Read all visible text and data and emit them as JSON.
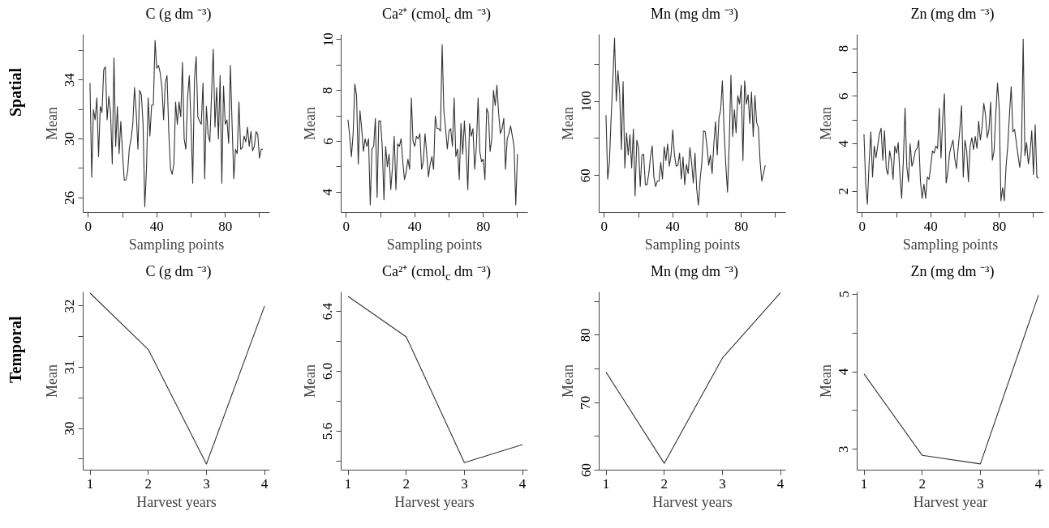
{
  "chart_data": [
    {
      "type": "line",
      "title": "C (g dm ⁻³)",
      "xlabel": "Sampling points",
      "ylabel": "Mean",
      "annotations": [
        "Spatial"
      ],
      "color": "#333333",
      "x": [
        1,
        2,
        3,
        4,
        5,
        6,
        7,
        8,
        9,
        10,
        11,
        12,
        13,
        14,
        15,
        16,
        17,
        18,
        19,
        20,
        21,
        22,
        23,
        24,
        25,
        26,
        27,
        28,
        29,
        30,
        31,
        32,
        33,
        34,
        35,
        36,
        37,
        38,
        39,
        40,
        41,
        42,
        43,
        44,
        45,
        46,
        47,
        48,
        49,
        50,
        51,
        52,
        53,
        54,
        55,
        56,
        57,
        58,
        59,
        60,
        61,
        62,
        63,
        64,
        65,
        66,
        67,
        68,
        69,
        70,
        71,
        72,
        73,
        74,
        75,
        76,
        77,
        78,
        79,
        80,
        81,
        82,
        83,
        84,
        85,
        86,
        87,
        88,
        89,
        90,
        91,
        92,
        93,
        94,
        95,
        96,
        97,
        98,
        99,
        100,
        101,
        102
      ],
      "values": [
        33.8,
        27.4,
        32,
        31.3,
        32.8,
        28.8,
        32.2,
        31.8,
        34.7,
        34.9,
        31.3,
        32.9,
        31.8,
        28.3,
        35.5,
        29.5,
        32.2,
        29,
        31.2,
        29,
        27.2,
        27.2,
        27.8,
        29.4,
        30,
        31,
        33.5,
        31.8,
        29.3,
        33.3,
        33,
        31,
        25.4,
        28,
        32.8,
        30.2,
        32.3,
        32.3,
        36.7,
        34.8,
        35,
        34.5,
        33.5,
        31.3,
        33.8,
        34.3,
        30.5,
        28,
        27.6,
        28.3,
        32.5,
        31,
        32.5,
        31.5,
        35.2,
        30,
        29.3,
        32.8,
        34.3,
        31,
        27,
        34,
        35.6,
        31.5,
        31.2,
        31,
        33.8,
        27.3,
        32.2,
        30.3,
        29.8,
        33,
        36.1,
        30.8,
        33.5,
        30,
        34.3,
        27,
        33.6,
        31,
        31.3,
        29.7,
        35,
        31,
        27.3,
        29.3,
        29,
        32.5,
        29.3,
        29.4,
        30.2,
        29.8,
        30.8,
        29.5,
        30.5,
        29.2,
        29.5,
        30.5,
        30.3,
        28.7,
        29.3,
        29.3
      ],
      "xlim": [
        -3,
        106
      ],
      "xticks": [
        0,
        {
          "value": 20,
          "label": null
        },
        40,
        {
          "value": 60,
          "label": null
        },
        80,
        {
          "value": 100,
          "label": null
        }
      ],
      "ylim": [
        25,
        37.1
      ],
      "yticks": [
        26,
        {
          "value": 28,
          "label": null
        },
        30,
        {
          "value": 32,
          "label": null
        },
        34,
        {
          "value": 36,
          "label": null
        }
      ]
    },
    {
      "type": "line",
      "title": "Ca²⁺ (cmol$_{c}$ dm ⁻³)",
      "xlabel": "Sampling points",
      "ylabel": "Mean",
      "color": "#333333",
      "x": [
        1,
        2,
        3,
        4,
        5,
        6,
        7,
        8,
        9,
        10,
        11,
        12,
        13,
        14,
        15,
        16,
        17,
        18,
        19,
        20,
        21,
        22,
        23,
        24,
        25,
        26,
        27,
        28,
        29,
        30,
        31,
        32,
        33,
        34,
        35,
        36,
        37,
        38,
        39,
        40,
        41,
        42,
        43,
        44,
        45,
        46,
        47,
        48,
        49,
        50,
        51,
        52,
        53,
        54,
        55,
        56,
        57,
        58,
        59,
        60,
        61,
        62,
        63,
        64,
        65,
        66,
        67,
        68,
        69,
        70,
        71,
        72,
        73,
        74,
        75,
        76,
        77,
        78,
        79,
        80,
        81,
        82,
        83,
        84,
        85,
        86,
        87,
        88,
        89,
        90,
        91,
        92,
        93,
        94,
        95,
        96,
        97,
        98,
        99,
        100
      ],
      "values": [
        6.85,
        6.2,
        5.4,
        6.3,
        8.25,
        7.8,
        5.1,
        7.2,
        6.5,
        5.6,
        6.1,
        5.8,
        6.1,
        3.5,
        5.7,
        5.8,
        6.9,
        3.8,
        6.8,
        6.8,
        5.8,
        3.7,
        5.8,
        5,
        5.5,
        4.1,
        5,
        6.2,
        4.1,
        5.9,
        5.8,
        6.1,
        5.2,
        4.5,
        4.8,
        5.3,
        4.9,
        7.7,
        6,
        5.8,
        6.2,
        6.1,
        6.3,
        4.9,
        5.2,
        6.3,
        5.5,
        4.6,
        5.1,
        5.4,
        4.9,
        7,
        6.5,
        6.5,
        6.4,
        9.8,
        7.2,
        6.5,
        5.7,
        6.4,
        6.5,
        5.8,
        7.7,
        5.4,
        5.7,
        4.5,
        6.7,
        5.5,
        6.8,
        5.6,
        4.1,
        6.7,
        6.2,
        6.5,
        4.9,
        5.8,
        7.7,
        5.6,
        5.2,
        5.3,
        4.5,
        7.3,
        7.1,
        5.6,
        6.1,
        8,
        7.4,
        8.2,
        7.1,
        6.3,
        6.5,
        6.9,
        4.9,
        6.1,
        6.3,
        6.6,
        6.2,
        5.8,
        3.5,
        5.5
      ],
      "xlim": [
        -3,
        106
      ],
      "xticks": [
        0,
        {
          "value": 20,
          "label": null
        },
        40,
        {
          "value": 60,
          "label": null
        },
        80,
        {
          "value": 100,
          "label": null
        }
      ],
      "ylim": [
        3.2,
        10.2
      ],
      "yticks": [
        4,
        {
          "value": 5,
          "label": null
        },
        6,
        {
          "value": 7,
          "label": null
        },
        8,
        {
          "value": 9,
          "label": null
        },
        10
      ]
    },
    {
      "type": "line",
      "title": "Mn (mg dm ⁻³)",
      "xlabel": "Sampling points",
      "ylabel": "Mean",
      "color": "#333333",
      "x": [
        1,
        2,
        3,
        4,
        5,
        6,
        7,
        8,
        9,
        10,
        11,
        12,
        13,
        14,
        15,
        16,
        17,
        18,
        19,
        20,
        21,
        22,
        23,
        24,
        25,
        26,
        27,
        28,
        29,
        30,
        31,
        32,
        33,
        34,
        35,
        36,
        37,
        38,
        39,
        40,
        41,
        42,
        43,
        44,
        45,
        46,
        47,
        48,
        49,
        50,
        51,
        52,
        53,
        54,
        55,
        56,
        57,
        58,
        59,
        60,
        61,
        62,
        63,
        64,
        65,
        66,
        67,
        68,
        69,
        70,
        71,
        72,
        73,
        74,
        75,
        76,
        77,
        78,
        79,
        80,
        81,
        82,
        83,
        84,
        85,
        86,
        87,
        88,
        89,
        90,
        91,
        92,
        93,
        94
      ],
      "values": [
        92.5,
        58,
        67,
        91,
        111.5,
        134,
        100,
        116.5,
        104,
        74,
        110.6,
        64,
        83,
        71,
        82,
        64,
        85,
        49,
        79,
        75,
        54,
        71,
        71.5,
        55,
        55,
        61,
        70,
        76,
        59,
        54,
        57,
        57,
        67,
        58,
        75.5,
        68,
        77,
        65,
        71,
        84.5,
        71,
        65,
        65.5,
        72,
        58,
        70,
        55,
        66,
        61,
        75,
        67,
        56,
        72,
        52.5,
        44,
        58,
        67,
        84,
        83.5,
        75.5,
        65.5,
        71,
        61,
        77,
        89,
        71,
        91,
        95.5,
        111,
        84,
        65.5,
        51,
        78,
        114,
        81,
        95.5,
        83,
        103,
        98.5,
        108.6,
        68,
        111,
        98.5,
        103.6,
        88,
        105,
        81,
        103,
        88.5,
        86,
        68,
        57,
        61,
        65.5
      ],
      "xlim": [
        -3,
        106
      ],
      "xticks": [
        0,
        {
          "value": 20,
          "label": null
        },
        40,
        {
          "value": 60,
          "label": null
        },
        80,
        {
          "value": 100,
          "label": null
        }
      ],
      "ylim": [
        40,
        136
      ],
      "yticks": [
        60,
        {
          "value": 80,
          "label": null
        },
        100,
        {
          "value": 120,
          "label": null
        }
      ]
    },
    {
      "type": "line",
      "title": "Zn (mg dm ⁻³)",
      "xlabel": "Sampling points",
      "ylabel": "Mean",
      "color": "#333333",
      "x": [
        1,
        2,
        3,
        4,
        5,
        6,
        7,
        8,
        9,
        10,
        11,
        12,
        13,
        14,
        15,
        16,
        17,
        18,
        19,
        20,
        21,
        22,
        23,
        24,
        25,
        26,
        27,
        28,
        29,
        30,
        31,
        32,
        33,
        34,
        35,
        36,
        37,
        38,
        39,
        40,
        41,
        42,
        43,
        44,
        45,
        46,
        47,
        48,
        49,
        50,
        51,
        52,
        53,
        54,
        55,
        56,
        57,
        58,
        59,
        60,
        61,
        62,
        63,
        64,
        65,
        66,
        67,
        68,
        69,
        70,
        71,
        72,
        73,
        74,
        75,
        76,
        77,
        78,
        79,
        80,
        81,
        82,
        83,
        84,
        85,
        86,
        87,
        88,
        89,
        90,
        91,
        92,
        93,
        94,
        95,
        96,
        97,
        98,
        99,
        100,
        101,
        102,
        103
      ],
      "values": [
        4.4,
        2.3,
        1.45,
        3.2,
        4.5,
        2.6,
        3.9,
        3.4,
        3.9,
        4.4,
        4.65,
        3.3,
        4.55,
        2.95,
        2.7,
        3.7,
        3.3,
        2.5,
        3.9,
        3.6,
        4.05,
        2.7,
        1.7,
        3.3,
        5.5,
        3.05,
        2.4,
        4,
        3.05,
        3.3,
        3.7,
        3.8,
        4.15,
        2.4,
        1.7,
        2.3,
        1.7,
        2.6,
        2.5,
        3.05,
        3.7,
        3.6,
        3.9,
        3.8,
        5.5,
        3.4,
        5.05,
        6.1,
        2.35,
        2.8,
        3.6,
        3.9,
        4.15,
        3.4,
        2.95,
        3.8,
        4.6,
        5.6,
        2.6,
        4.15,
        3.7,
        2.4,
        3.9,
        4.25,
        3.75,
        4.3,
        3.8,
        4.95,
        4.15,
        4.7,
        5.7,
        5.2,
        4.25,
        4.6,
        5.75,
        3.3,
        3.7,
        5.25,
        6.55,
        5.5,
        1.6,
        2.15,
        1.6,
        3.05,
        3.9,
        5.25,
        6.4,
        4.5,
        4.6,
        4.05,
        3.5,
        3,
        3.7,
        8.4,
        3.5,
        4.05,
        3.15,
        3.6,
        4.55,
        2.7,
        4.8,
        2.6,
        2.55
      ],
      "xlim": [
        -3,
        106
      ],
      "xticks": [
        0,
        {
          "value": 20,
          "label": null
        },
        40,
        {
          "value": 60,
          "label": null
        },
        80,
        {
          "value": 100,
          "label": null
        }
      ],
      "ylim": [
        1.1,
        8.6
      ],
      "yticks": [
        2,
        {
          "value": 3,
          "label": null
        },
        4,
        {
          "value": 5,
          "label": null
        },
        6,
        {
          "value": 7,
          "label": null
        },
        8
      ]
    },
    {
      "type": "line",
      "title": "C (g dm ⁻³)",
      "xlabel": "Harvest years",
      "ylabel": "Mean",
      "annotations": [
        "Temporal"
      ],
      "color": "#333333",
      "x": [
        1,
        2,
        3,
        4
      ],
      "values": [
        32.21,
        31.29,
        29.42,
        32.0
      ],
      "xlim": [
        0.88,
        4.09
      ],
      "xticks": [
        1,
        2,
        3,
        4
      ],
      "ylim": [
        29.32,
        32.23
      ],
      "yticks": [
        {
          "value": 29.5,
          "label": null
        },
        30,
        {
          "value": 30.5,
          "label": null
        },
        31,
        {
          "value": 31.5,
          "label": null
        },
        32
      ]
    },
    {
      "type": "line",
      "title": "Ca²⁺ (cmol$_{c}$ dm ⁻³)",
      "xlabel": "Harvest years",
      "ylabel": "Mean",
      "color": "#333333",
      "x": [
        1,
        2,
        3,
        4
      ],
      "values": [
        6.5,
        6.23,
        5.39,
        5.51
      ],
      "xlim": [
        0.88,
        4.09
      ],
      "xticks": [
        1,
        2,
        3,
        4
      ],
      "ylim": [
        5.34,
        6.53
      ],
      "yticks": [
        {
          "value": 5.4,
          "label": null
        },
        5.6,
        {
          "value": 5.8,
          "label": null
        },
        {
          "value": 6.0,
          "label": "6.0"
        },
        {
          "value": 6.2,
          "label": null
        },
        6.4
      ]
    },
    {
      "type": "line",
      "title": "Mn (mg dm ⁻³)",
      "xlabel": "Harvest years",
      "ylabel": "Mean",
      "color": "#333333",
      "x": [
        1,
        2,
        3,
        4
      ],
      "values": [
        74.5,
        61.0,
        76.6,
        86.3
      ],
      "xlim": [
        0.88,
        4.09
      ],
      "xticks": [
        1,
        2,
        3,
        4
      ],
      "ylim": [
        60,
        86.4
      ],
      "yticks": [
        60,
        {
          "value": 65,
          "label": null
        },
        70,
        {
          "value": 75,
          "label": null
        },
        80,
        {
          "value": 85,
          "label": null
        }
      ]
    },
    {
      "type": "line",
      "title": "Zn (mg dm ⁻³)",
      "xlabel": "Harvest year",
      "ylabel": "Mean",
      "color": "#333333",
      "x": [
        1,
        2,
        3,
        4
      ],
      "values": [
        3.97,
        2.92,
        2.81,
        4.99
      ],
      "xlim": [
        0.88,
        4.09
      ],
      "xticks": [
        1,
        2,
        3,
        4
      ],
      "ylim": [
        2.73,
        5.03
      ],
      "yticks": [
        3,
        {
          "value": 3.5,
          "label": null
        },
        4,
        {
          "value": 4.5,
          "label": null
        },
        5
      ]
    }
  ]
}
